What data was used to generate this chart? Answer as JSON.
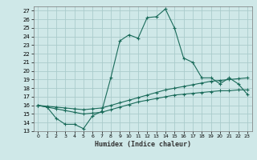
{
  "title": "",
  "xlabel": "Humidex (Indice chaleur)",
  "ylabel": "",
  "background_color": "#cfe8e8",
  "grid_color": "#aacccc",
  "line_color": "#1a6b5a",
  "xlim": [
    -0.5,
    23.5
  ],
  "ylim": [
    13,
    27.5
  ],
  "yticks": [
    13,
    14,
    15,
    16,
    17,
    18,
    19,
    20,
    21,
    22,
    23,
    24,
    25,
    26,
    27
  ],
  "xticks": [
    0,
    1,
    2,
    3,
    4,
    5,
    6,
    7,
    8,
    9,
    10,
    11,
    12,
    13,
    14,
    15,
    16,
    17,
    18,
    19,
    20,
    21,
    22,
    23
  ],
  "xtick_labels": [
    "0",
    "1",
    "2",
    "3",
    "4",
    "5",
    "6",
    "7",
    "8",
    "9",
    "10",
    "11",
    "12",
    "13",
    "14",
    "15",
    "16",
    "17",
    "18",
    "19",
    "20",
    "21",
    "22",
    "23"
  ],
  "series1_x": [
    0,
    1,
    2,
    3,
    4,
    5,
    6,
    7,
    8,
    9,
    10,
    11,
    12,
    13,
    14,
    15,
    16,
    17,
    18,
    19,
    20,
    21,
    22,
    23
  ],
  "series1_y": [
    16.0,
    15.8,
    14.5,
    13.8,
    13.8,
    13.3,
    14.8,
    15.3,
    19.2,
    23.5,
    24.2,
    23.8,
    26.2,
    26.3,
    27.2,
    25.0,
    21.5,
    21.0,
    19.2,
    19.2,
    18.5,
    19.2,
    18.5,
    17.3
  ],
  "series2_x": [
    0,
    1,
    2,
    3,
    4,
    5,
    6,
    7,
    8,
    9,
    10,
    11,
    12,
    13,
    14,
    15,
    16,
    17,
    18,
    19,
    20,
    21,
    22,
    23
  ],
  "series2_y": [
    16.0,
    15.9,
    15.8,
    15.7,
    15.6,
    15.5,
    15.6,
    15.7,
    16.0,
    16.3,
    16.6,
    16.9,
    17.2,
    17.5,
    17.8,
    18.0,
    18.2,
    18.4,
    18.6,
    18.8,
    18.9,
    19.0,
    19.1,
    19.2
  ],
  "series3_x": [
    0,
    1,
    2,
    3,
    4,
    5,
    6,
    7,
    8,
    9,
    10,
    11,
    12,
    13,
    14,
    15,
    16,
    17,
    18,
    19,
    20,
    21,
    22,
    23
  ],
  "series3_y": [
    16.0,
    15.8,
    15.6,
    15.4,
    15.2,
    15.0,
    15.1,
    15.2,
    15.5,
    15.8,
    16.1,
    16.4,
    16.6,
    16.8,
    17.0,
    17.2,
    17.3,
    17.4,
    17.5,
    17.6,
    17.7,
    17.7,
    17.8,
    17.8
  ]
}
